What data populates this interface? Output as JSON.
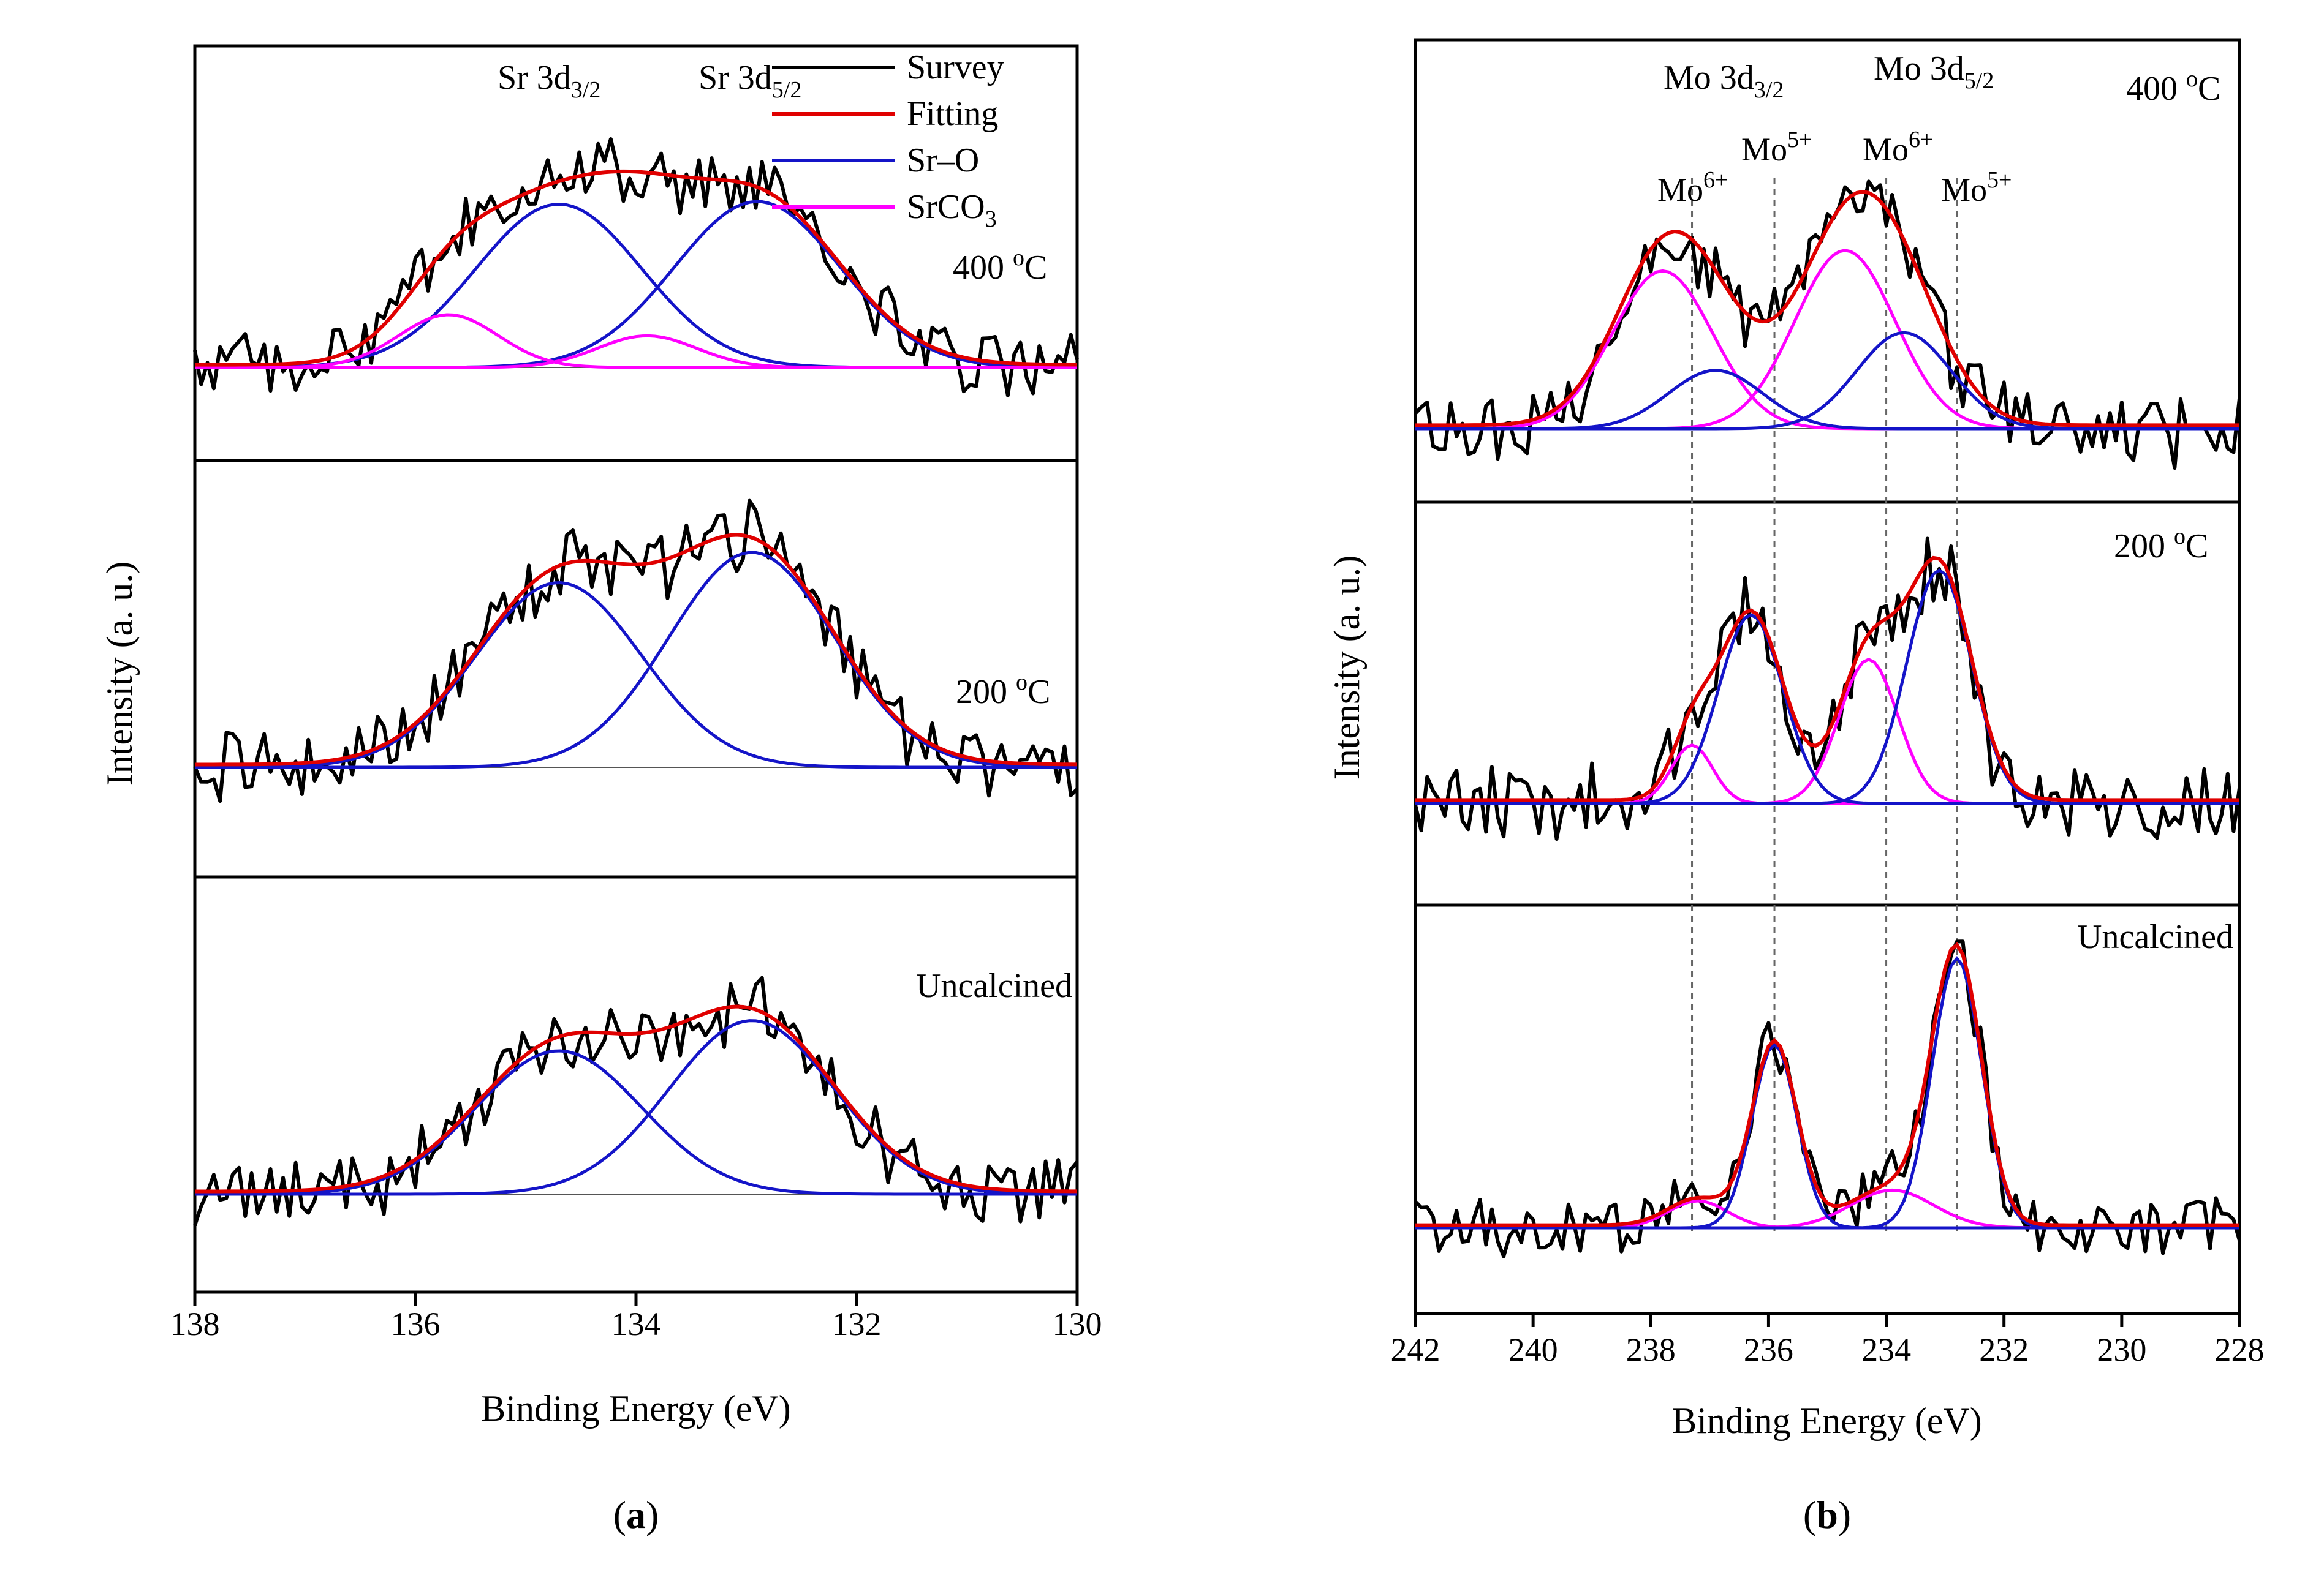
{
  "chart_data": [
    {
      "id": "a",
      "type": "line",
      "caption_label": "a",
      "xlabel": "Binding Energy (eV)",
      "ylabel": "Intensity (a. u.)",
      "xlim": [
        138,
        130
      ],
      "xticks": [
        "138",
        "136",
        "134",
        "132",
        "130"
      ],
      "legend": {
        "position": "top-right",
        "entries": [
          {
            "name": "Survey",
            "color": "#000000"
          },
          {
            "name": "Fitting",
            "color": "#e00000"
          },
          {
            "name": "Sr–O",
            "color": "#1414c8"
          },
          {
            "name": "SrCO",
            "sub": "3",
            "color": "#ff00ff"
          }
        ]
      },
      "peak_labels": [
        {
          "base": "Sr 3d",
          "sub": "3/2",
          "x": 134.7
        },
        {
          "base": "Sr 3d",
          "sub": "5/2",
          "x": 132.9
        }
      ],
      "panels": [
        {
          "label": "400 °C",
          "label_base": "400 ",
          "label_sup": "o",
          "label_unit": "C",
          "components": [
            {
              "name": "Sr–O",
              "color": "#1414c8",
              "peaks": [
                {
                  "center": 134.7,
                  "height": 0.62,
                  "width": 0.75
                },
                {
                  "center": 132.9,
                  "height": 0.63,
                  "width": 0.75
                }
              ]
            },
            {
              "name": "SrCO3",
              "color": "#ff00ff",
              "peaks": [
                {
                  "center": 135.7,
                  "height": 0.2,
                  "width": 0.45
                },
                {
                  "center": 133.9,
                  "height": 0.12,
                  "width": 0.45
                }
              ]
            }
          ]
        },
        {
          "label": "200 °C",
          "label_base": "200 ",
          "label_sup": "o",
          "label_unit": "C",
          "components": [
            {
              "name": "Sr–O",
              "color": "#1414c8",
              "peaks": [
                {
                  "center": 134.7,
                  "height": 0.67,
                  "width": 0.75
                },
                {
                  "center": 132.95,
                  "height": 0.78,
                  "width": 0.75
                }
              ]
            }
          ]
        },
        {
          "label": "Uncalcined",
          "label_base": "Uncalcined",
          "label_sup": "",
          "label_unit": "",
          "components": [
            {
              "name": "Sr–O",
              "color": "#1414c8",
              "peaks": [
                {
                  "center": 134.7,
                  "height": 0.52,
                  "width": 0.75
                },
                {
                  "center": 132.95,
                  "height": 0.63,
                  "width": 0.75
                }
              ]
            }
          ]
        }
      ]
    },
    {
      "id": "b",
      "type": "line",
      "caption_label": "b",
      "xlabel": "Binding Energy (eV)",
      "ylabel": "Intensity (a. u.)",
      "xlim": [
        242,
        228
      ],
      "xticks": [
        "242",
        "240",
        "238",
        "236",
        "234",
        "232",
        "230",
        "228"
      ],
      "peak_labels": [
        {
          "base": "Mo 3d",
          "sub": "3/2",
          "x": 236.8
        },
        {
          "base": "Mo 3d",
          "sub": "5/2",
          "x": 233.8
        }
      ],
      "state_labels": [
        {
          "base": "Mo",
          "sup": "6+",
          "x": 237.3
        },
        {
          "base": "Mo",
          "sup": "5+",
          "x": 235.9
        },
        {
          "base": "Mo",
          "sup": "6+",
          "x": 234.0
        },
        {
          "base": "Mo",
          "sup": "5+",
          "x": 232.8
        }
      ],
      "reference_lines": [
        237.3,
        235.9,
        234.0,
        232.8
      ],
      "panels": [
        {
          "label": "400 °C",
          "label_base": "400 ",
          "label_sup": "o",
          "label_unit": "C",
          "components": [
            {
              "name": "Mo6+",
              "color": "#ff00ff",
              "peaks": [
                {
                  "center": 237.8,
                  "height": 0.46,
                  "width": 0.85
                },
                {
                  "center": 234.7,
                  "height": 0.52,
                  "width": 0.85
                }
              ]
            },
            {
              "name": "Mo5+",
              "color": "#1414c8",
              "peaks": [
                {
                  "center": 236.9,
                  "height": 0.17,
                  "width": 0.8
                },
                {
                  "center": 233.7,
                  "height": 0.28,
                  "width": 0.8
                }
              ]
            }
          ]
        },
        {
          "label": "200 °C",
          "label_base": "200 ",
          "label_sup": "o",
          "label_unit": "C",
          "components": [
            {
              "name": "Mo6+",
              "color": "#ff00ff",
              "peaks": [
                {
                  "center": 237.3,
                  "height": 0.17,
                  "width": 0.35
                },
                {
                  "center": 234.3,
                  "height": 0.42,
                  "width": 0.5
                }
              ]
            },
            {
              "name": "Mo5+",
              "color": "#1414c8",
              "peaks": [
                {
                  "center": 236.3,
                  "height": 0.55,
                  "width": 0.55
                },
                {
                  "center": 233.1,
                  "height": 0.68,
                  "width": 0.55
                }
              ]
            }
          ]
        },
        {
          "label": "Uncalcined",
          "label_base": "Uncalcined",
          "label_sup": "",
          "label_unit": "",
          "components": [
            {
              "name": "Mo6+",
              "color": "#ff00ff",
              "peaks": [
                {
                  "center": 237.2,
                  "height": 0.1,
                  "width": 0.5
                },
                {
                  "center": 233.9,
                  "height": 0.14,
                  "width": 0.7
                }
              ]
            },
            {
              "name": "Mo5+",
              "color": "#1414c8",
              "peaks": [
                {
                  "center": 235.9,
                  "height": 0.68,
                  "width": 0.38
                },
                {
                  "center": 232.8,
                  "height": 1.0,
                  "width": 0.42
                }
              ]
            }
          ]
        }
      ]
    }
  ]
}
